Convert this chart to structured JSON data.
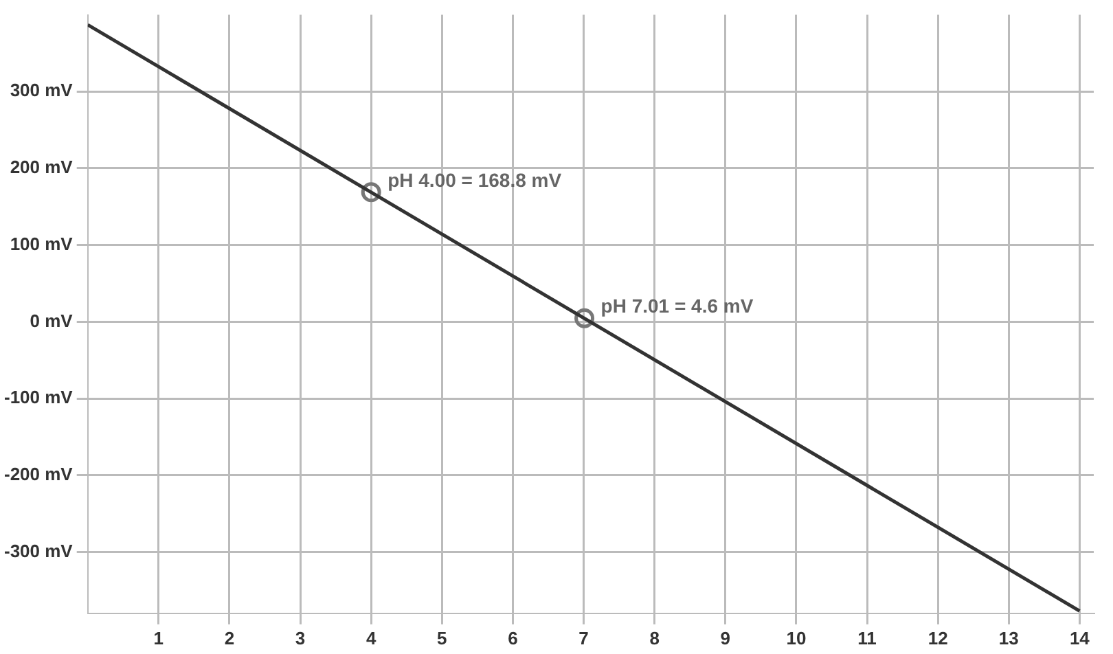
{
  "chart_data": {
    "type": "line",
    "series": [
      {
        "color": "#333333",
        "x": [
          0,
          14
        ],
        "values": [
          387,
          -377
        ],
        "marker": "none",
        "line_style": "solid"
      },
      {
        "type": "scatter",
        "color": "#777777",
        "x": [
          4,
          7.01
        ],
        "values": [
          168.8,
          4.6
        ],
        "marker": "circle"
      }
    ],
    "xlim": [
      0,
      14.2
    ],
    "ylim": [
      -380,
      400
    ],
    "xticks": [
      1,
      2,
      3,
      4,
      5,
      6,
      7,
      8,
      9,
      10,
      11,
      12,
      13,
      14
    ],
    "yticks": [
      {
        "value": -300,
        "label": "-300 mV"
      },
      {
        "value": -200,
        "label": "-200 mV"
      },
      {
        "value": -100,
        "label": "-100 mV"
      },
      {
        "value": 0,
        "label": "0 mV"
      },
      {
        "value": 100,
        "label": "100 mV"
      },
      {
        "value": 200,
        "label": "200 mV"
      },
      {
        "value": 300,
        "label": "300 mV"
      }
    ],
    "grid": true,
    "legend": false,
    "annotations": [
      {
        "text": "pH 4.00 = 168.8 mV",
        "x": 4,
        "y": 168.8
      },
      {
        "text": "pH 7.01 = 4.6 mV",
        "x": 7.01,
        "y": 4.6
      }
    ]
  }
}
